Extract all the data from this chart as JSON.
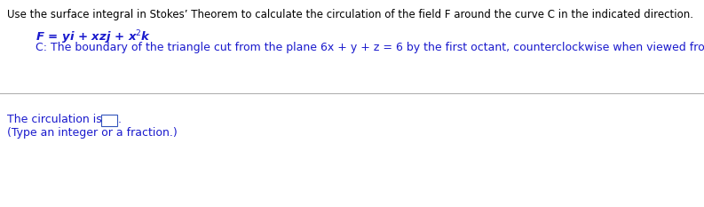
{
  "title_text": "Use the surface integral in Stokes’ Theorem to calculate the circulation of the field F around the curve C in the indicated direction.",
  "field_text_plain": "F = yi + xzj + x",
  "field_superscript": "2",
  "field_text_end": "k",
  "curve_text": "C: The boundary of the triangle cut from the plane 6x + y + z = 6 by the first octant, counterclockwise when viewed from above.",
  "answer_prefix": "The circulation is",
  "answer_hint": "(Type an integer or a fraction.)",
  "title_color": "#000000",
  "body_color": "#1a1acd",
  "bg_color": "#FFFFFF",
  "divider_color": "#aaaaaa",
  "title_fontsize": 8.5,
  "field_fontsize": 9.5,
  "curve_fontsize": 9.0,
  "answer_fontsize": 9.0,
  "hint_fontsize": 9.0
}
